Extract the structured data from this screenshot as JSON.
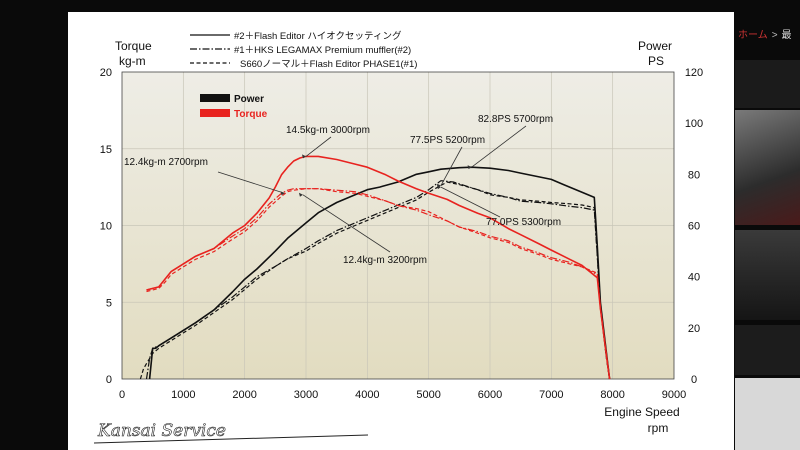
{
  "background": {
    "breadcrumb": [
      "ホーム",
      "最"
    ]
  },
  "brand": {
    "logo_text": "Kansai Service"
  },
  "chart_data": {
    "type": "line",
    "title": "",
    "header_legend": [
      {
        "label": "#2＋Flash Editor ハイオクセッティング",
        "style": "solid"
      },
      {
        "label": "#1＋HKS LEGAMAX Premium  muffler(#2)",
        "style": "dashdot"
      },
      {
        "label": "S660ノーマル＋Flash Editor PHASE1(#1)",
        "style": "dashed"
      }
    ],
    "color_legend": [
      {
        "label": "Power",
        "color": "#111111"
      },
      {
        "label": "Torque",
        "color": "#e8231f"
      }
    ],
    "x_axis": {
      "label_line1": "Engine Speed",
      "label_line2": "rpm",
      "ticks": [
        0,
        1000,
        2000,
        3000,
        4000,
        5000,
        6000,
        7000,
        8000,
        9000
      ],
      "range": [
        0,
        9000
      ]
    },
    "y_left": {
      "label_line1": "Torque",
      "label_line2": "kg-m",
      "ticks": [
        0,
        5,
        10,
        15,
        20
      ],
      "range": [
        0,
        20
      ]
    },
    "y_right": {
      "label_line1": "Power",
      "label_line2": "PS",
      "ticks": [
        0,
        20,
        40,
        60,
        80,
        100,
        120
      ],
      "range": [
        0,
        120
      ]
    },
    "annotations": [
      {
        "text": "82.8PS  5700rpm",
        "x": 5700,
        "y": 13.8
      },
      {
        "text": "77.5PS  5200rpm",
        "x": 5200,
        "y": 12.9
      },
      {
        "text": "14.5kg-m  3000rpm",
        "x": 3000,
        "y": 14.5
      },
      {
        "text": "12.4kg-m  2700rpm",
        "x": 2700,
        "y": 12.4
      },
      {
        "text": "12.4kg-m  3200rpm",
        "x": 3200,
        "y": 12.4
      },
      {
        "text": "77.0PS  5300rpm",
        "x": 5300,
        "y": 12.8
      }
    ],
    "series": [
      {
        "name": "#2＋Flash Editor ハイオクセッティング",
        "metric": "Power",
        "color": "#111111",
        "dash": "solid",
        "axis": "right",
        "x": [
          450,
          500,
          550,
          600,
          800,
          1000,
          1200,
          1500,
          1800,
          2000,
          2200,
          2500,
          2700,
          3000,
          3200,
          3500,
          3800,
          4000,
          4200,
          4500,
          4800,
          5000,
          5200,
          5500,
          5700,
          6000,
          6300,
          6500,
          6800,
          7000,
          7200,
          7500,
          7700,
          7750,
          7800,
          7900,
          7950
        ],
        "y": [
          0,
          12,
          12,
          13,
          16,
          19,
          22,
          27,
          34,
          39,
          43,
          50,
          55,
          61,
          65,
          69,
          72,
          74,
          75,
          77,
          80,
          81,
          82,
          82.6,
          82.8,
          82.4,
          81.5,
          80.5,
          79,
          78,
          76,
          73,
          71,
          52,
          30,
          10,
          0
        ]
      },
      {
        "name": "#1＋HKS LEGAMAX Premium  muffler(#2)",
        "metric": "Power",
        "color": "#111111",
        "dash": "dashdot",
        "axis": "right",
        "x": [
          400,
          450,
          500,
          600,
          800,
          1000,
          1200,
          1500,
          1800,
          2000,
          2200,
          2500,
          2700,
          3000,
          3200,
          3500,
          3800,
          4000,
          4200,
          4500,
          4800,
          5000,
          5200,
          5400,
          5600,
          5800,
          6000,
          6300,
          6500,
          6800,
          7000,
          7300,
          7500,
          7700,
          7750,
          7800,
          7900,
          7950
        ],
        "y": [
          0,
          8,
          12,
          13,
          16,
          19,
          22,
          27,
          32,
          36,
          40,
          44,
          47,
          51,
          54,
          58,
          61,
          63,
          65,
          68,
          71,
          74,
          77.5,
          77,
          75.5,
          74,
          72.5,
          71,
          69.5,
          69,
          68.5,
          67.5,
          67,
          66,
          48,
          28,
          8,
          0
        ]
      },
      {
        "name": "S660ノーマル＋Flash Editor PHASE1(#1)",
        "metric": "Power",
        "color": "#111111",
        "dash": "dashed",
        "axis": "right",
        "x": [
          300,
          350,
          400,
          500,
          600,
          800,
          1000,
          1200,
          1500,
          1800,
          2000,
          2200,
          2500,
          2700,
          3000,
          3200,
          3500,
          3800,
          4000,
          4200,
          4500,
          4800,
          5000,
          5300,
          5500,
          5800,
          6000,
          6300,
          6500,
          6800,
          7000,
          7300,
          7500,
          7700,
          7750,
          7800,
          7900,
          7950
        ],
        "y": [
          0,
          4,
          6,
          10,
          12,
          15,
          18,
          21,
          26,
          31,
          35,
          39,
          44,
          47,
          50,
          53,
          57,
          60,
          62,
          64,
          67,
          70,
          73,
          77,
          76,
          74,
          72,
          71,
          70,
          69.5,
          69,
          68.5,
          68,
          67,
          48,
          28,
          8,
          0
        ]
      },
      {
        "name": "#2＋Flash Editor ハイオクセッティング",
        "metric": "Torque",
        "color": "#e8231f",
        "dash": "solid",
        "axis": "left",
        "x": [
          400,
          500,
          600,
          700,
          800,
          1000,
          1200,
          1500,
          1800,
          2000,
          2200,
          2400,
          2500,
          2600,
          2700,
          2800,
          2900,
          3000,
          3200,
          3500,
          3800,
          4000,
          4300,
          4500,
          4800,
          5000,
          5300,
          5500,
          5800,
          6000,
          6300,
          6500,
          6800,
          7000,
          7300,
          7500,
          7750,
          7800,
          7900,
          7950
        ],
        "y": [
          5.8,
          5.9,
          6.0,
          6.5,
          7.0,
          7.5,
          8.0,
          8.5,
          9.5,
          10.0,
          10.8,
          11.8,
          12.5,
          13.3,
          13.8,
          14.2,
          14.4,
          14.5,
          14.5,
          14.3,
          14.0,
          13.8,
          13.3,
          12.9,
          12.4,
          12.1,
          11.7,
          11.3,
          10.8,
          10.5,
          9.8,
          9.4,
          8.8,
          8.4,
          7.8,
          7.4,
          6.6,
          4.6,
          1.5,
          0
        ]
      },
      {
        "name": "#1＋HKS LEGAMAX Premium  muffler(#2)",
        "metric": "Torque",
        "color": "#e8231f",
        "dash": "dashdot",
        "axis": "left",
        "x": [
          400,
          500,
          600,
          700,
          800,
          1000,
          1200,
          1500,
          1800,
          2000,
          2200,
          2400,
          2600,
          2700,
          2800,
          3000,
          3200,
          3500,
          3800,
          4000,
          4300,
          4500,
          4800,
          5000,
          5300,
          5500,
          5800,
          6000,
          6300,
          6500,
          6800,
          7000,
          7300,
          7500,
          7750,
          7800,
          7900,
          7950
        ],
        "y": [
          5.8,
          5.9,
          6.0,
          6.5,
          7.0,
          7.5,
          8.0,
          8.5,
          9.3,
          9.8,
          10.5,
          11.4,
          12.1,
          12.3,
          12.4,
          12.4,
          12.4,
          12.3,
          12.2,
          12.0,
          11.6,
          11.3,
          11.0,
          10.7,
          10.3,
          9.9,
          9.6,
          9.3,
          9.0,
          8.6,
          8.2,
          7.9,
          7.6,
          7.3,
          6.8,
          4.6,
          1.5,
          0
        ]
      },
      {
        "name": "S660ノーマル＋Flash Editor PHASE1(#1)",
        "metric": "Torque",
        "color": "#e8231f",
        "dash": "dashed",
        "axis": "left",
        "x": [
          400,
          500,
          600,
          700,
          800,
          1000,
          1200,
          1500,
          1800,
          2000,
          2200,
          2400,
          2600,
          2700,
          2800,
          3000,
          3200,
          3500,
          3800,
          4000,
          4300,
          4500,
          4800,
          5000,
          5300,
          5500,
          5800,
          6000,
          6300,
          6500,
          6800,
          7000,
          7300,
          7500,
          7750,
          7800,
          7900,
          7950
        ],
        "y": [
          5.7,
          5.8,
          5.9,
          6.3,
          6.8,
          7.3,
          7.8,
          8.3,
          9.1,
          9.6,
          10.3,
          11.2,
          11.9,
          12.2,
          12.3,
          12.4,
          12.4,
          12.2,
          12.1,
          11.9,
          11.6,
          11.3,
          11.1,
          10.9,
          10.3,
          9.9,
          9.5,
          9.2,
          8.9,
          8.5,
          8.1,
          7.8,
          7.5,
          7.3,
          6.9,
          4.6,
          1.5,
          0
        ]
      }
    ]
  }
}
